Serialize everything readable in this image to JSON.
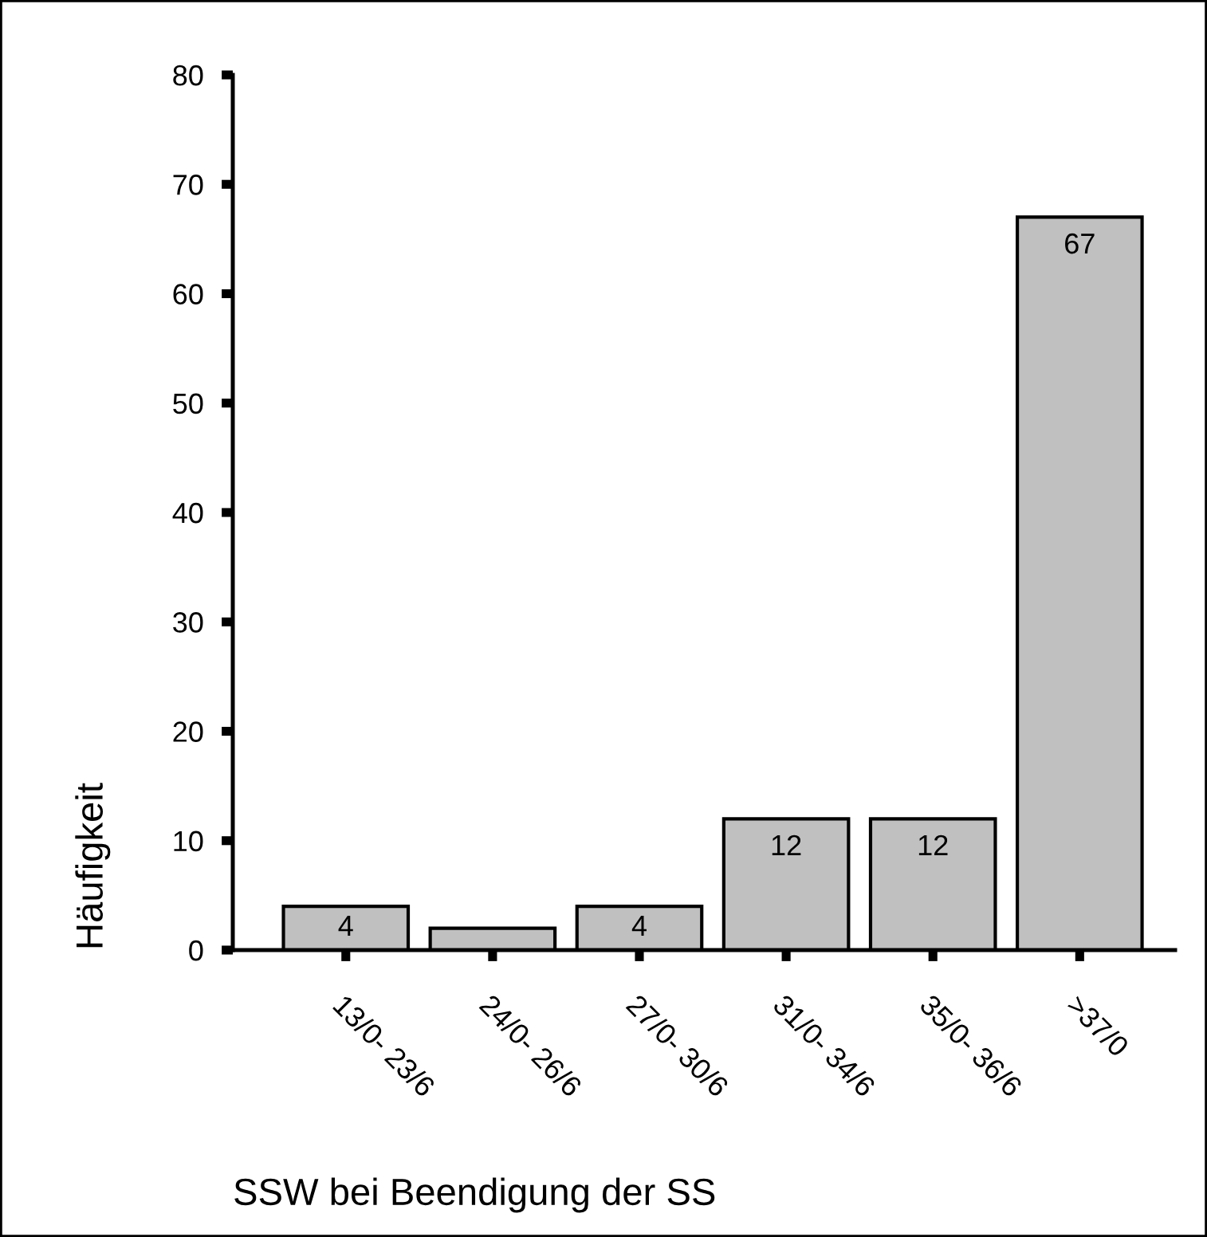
{
  "chart_data": {
    "type": "bar",
    "xlabel": "SSW bei Beendigung der SS",
    "ylabel": "Häufigkeit",
    "categories": [
      "13/0- 23/6",
      "24/0- 26/6",
      "27/0- 30/6",
      "31/0- 34/6",
      "35/0- 36/6",
      ">37/0"
    ],
    "values": [
      4,
      2,
      4,
      12,
      12,
      67
    ],
    "value_labels": [
      "4",
      null,
      "4",
      "12",
      "12",
      "67"
    ],
    "color": "#c0c0c0",
    "ylim": [
      0,
      80
    ],
    "yticks": [
      0,
      10,
      20,
      30,
      40,
      50,
      60,
      70,
      80
    ],
    "grid": false,
    "legend": false
  }
}
